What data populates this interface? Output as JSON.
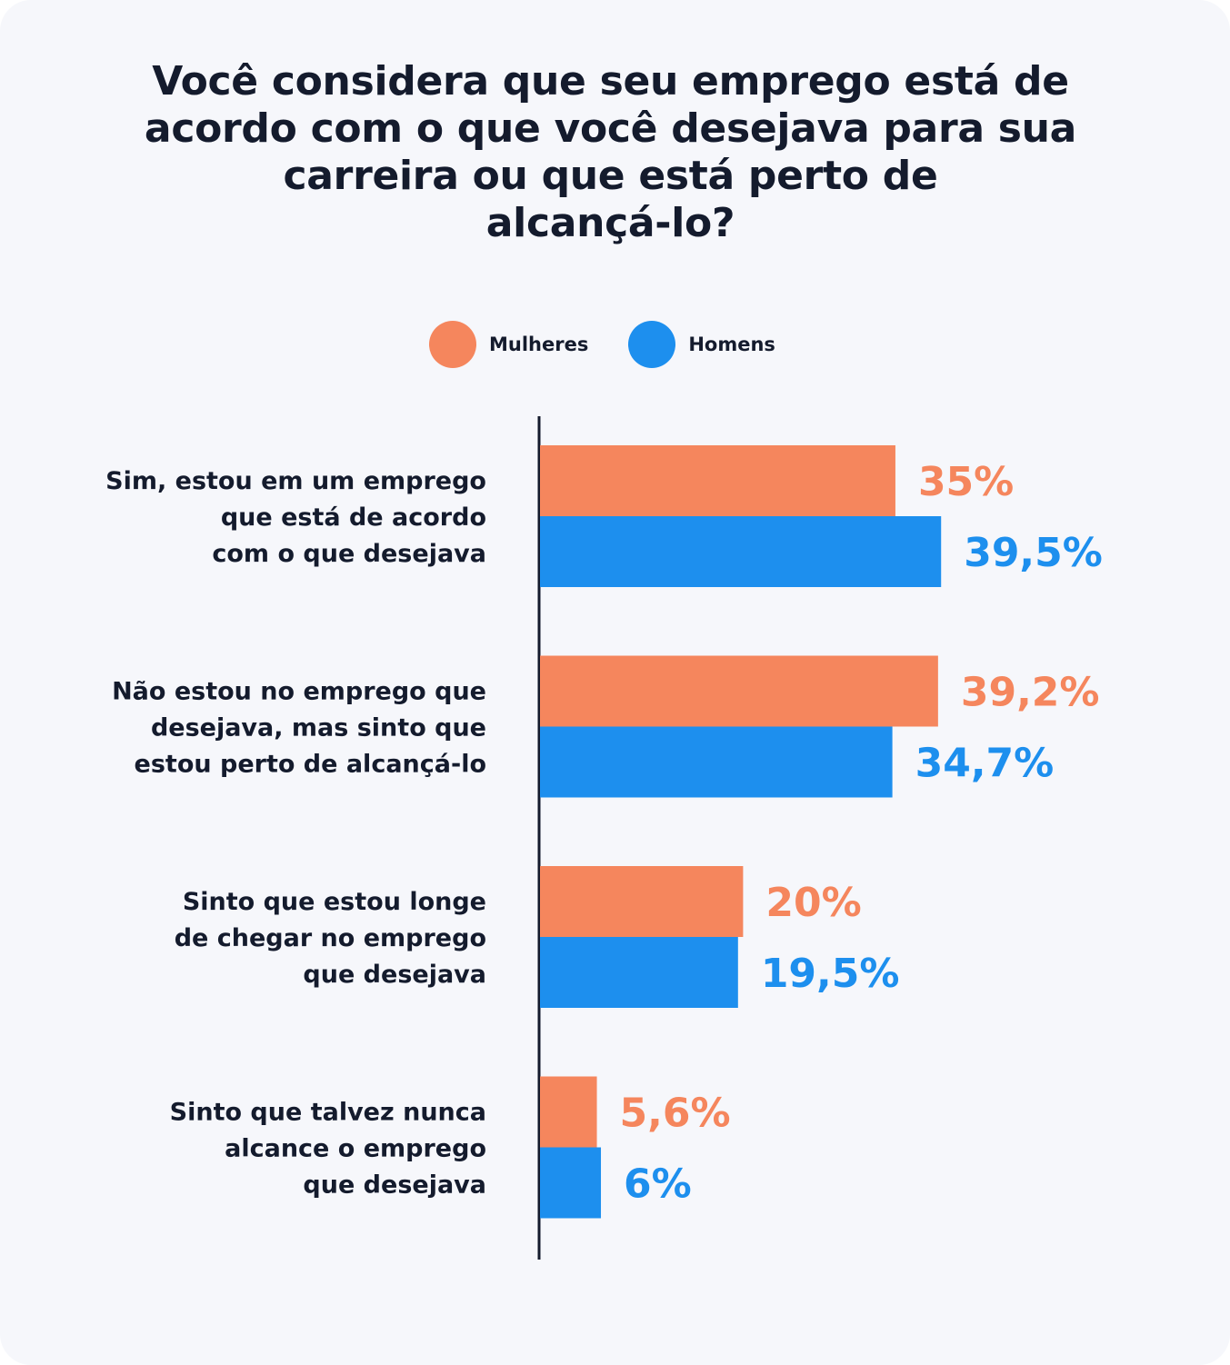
{
  "colors": {
    "mulheres": "#f5865d",
    "homens": "#1d8fee",
    "axis": "#141b2d",
    "text": "#141b2d"
  },
  "chart_data": {
    "type": "bar",
    "orientation": "horizontal",
    "title": "Você considera que seu emprego está de acordo com o que você desejava para sua carreira ou que está perto de alcançá-lo?",
    "title_lines": [
      "Você considera que seu emprego está de",
      "acordo com o que você desejava para sua",
      "carreira ou que está perto de",
      "alcançá-lo?"
    ],
    "categories": [
      "Sim, estou em um emprego que está de acordo com o que desejava",
      "Não estou no emprego que desejava, mas sinto que estou perto de alcançá-lo",
      "Sinto que estou longe de chegar no emprego que desejava",
      "Sinto que talvez nunca alcance o emprego que desejava"
    ],
    "category_lines": [
      [
        "Sim, estou em um emprego",
        "que está de acordo",
        "com o que desejava"
      ],
      [
        "Não estou no emprego que",
        "desejava, mas sinto que",
        "estou perto de alcançá-lo"
      ],
      [
        "Sinto que estou longe",
        "de chegar no emprego",
        "que desejava"
      ],
      [
        "Sinto que talvez nunca",
        "alcance o emprego",
        "que desejava"
      ]
    ],
    "series": [
      {
        "name": "Mulheres",
        "color": "#f5865d",
        "values": [
          35,
          39.2,
          20,
          5.6
        ],
        "labels": [
          "35%",
          "39,2%",
          "20%",
          "5,6%"
        ]
      },
      {
        "name": "Homens",
        "color": "#1d8fee",
        "values": [
          39.5,
          34.7,
          19.5,
          6
        ],
        "labels": [
          "39,5%",
          "34,7%",
          "19,5%",
          "6%"
        ]
      }
    ],
    "unit": "%",
    "xlim": [
      0,
      100
    ],
    "grid": false,
    "legend_position": "top"
  }
}
